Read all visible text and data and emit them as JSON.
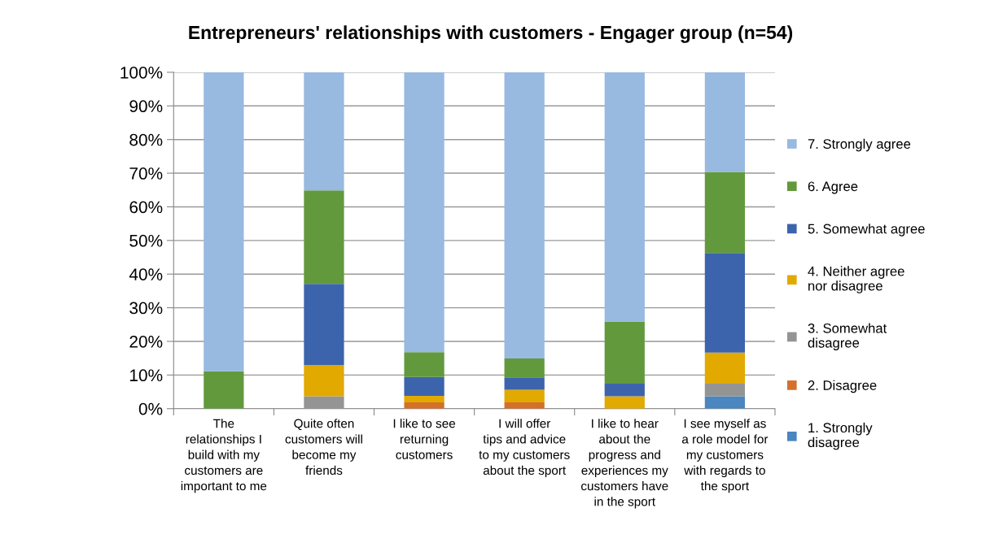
{
  "chart_data": {
    "type": "bar",
    "stacked": true,
    "title": "Entrepreneurs' relationships with customers - Engager group (n=54)",
    "categories": [
      "The relationships I build with my customers are important to me",
      "Quite often customers will become my friends",
      "I like to see returning customers",
      "I will offer tips and advice to my customers about the sport",
      "I like to hear about the progress and experiences my customers have in the sport",
      "I see myself as a role model for my customers with regards to the sport"
    ],
    "series": [
      {
        "name": "1. Strongly disagree",
        "color": "#4a86c0",
        "values": [
          0,
          0,
          0,
          0,
          0,
          3.7
        ]
      },
      {
        "name": "2. Disagree",
        "color": "#d4702a",
        "values": [
          0,
          0,
          1.9,
          1.9,
          0,
          0
        ]
      },
      {
        "name": "3. Somewhat disagree",
        "color": "#949494",
        "values": [
          0,
          3.7,
          0,
          0,
          0,
          3.7
        ]
      },
      {
        "name": "4. Neither agree nor disagree",
        "color": "#e2a900",
        "values": [
          0,
          9.3,
          1.9,
          3.7,
          3.7,
          9.3
        ]
      },
      {
        "name": "5. Somewhat agree",
        "color": "#3c64ad",
        "values": [
          0,
          24.1,
          5.6,
          3.7,
          3.7,
          29.6
        ]
      },
      {
        "name": "6. Agree",
        "color": "#63993d",
        "values": [
          11.1,
          27.8,
          7.4,
          5.6,
          18.5,
          24.1
        ]
      },
      {
        "name": "7. Strongly agree",
        "color": "#98b9e0",
        "values": [
          88.9,
          35.2,
          83.3,
          85.2,
          74.1,
          29.6
        ]
      }
    ],
    "ylim": [
      0,
      100
    ],
    "yticks": [
      {
        "value": 0,
        "label": "0%"
      },
      {
        "value": 10,
        "label": "10%"
      },
      {
        "value": 20,
        "label": "20%"
      },
      {
        "value": 30,
        "label": "30%"
      },
      {
        "value": 40,
        "label": "40%"
      },
      {
        "value": 50,
        "label": "50%"
      },
      {
        "value": 60,
        "label": "60%"
      },
      {
        "value": 70,
        "label": "70%"
      },
      {
        "value": 80,
        "label": "80%"
      },
      {
        "value": 90,
        "label": "90%"
      },
      {
        "value": 100,
        "label": "100%"
      }
    ],
    "grid": "y",
    "legend": "right"
  }
}
